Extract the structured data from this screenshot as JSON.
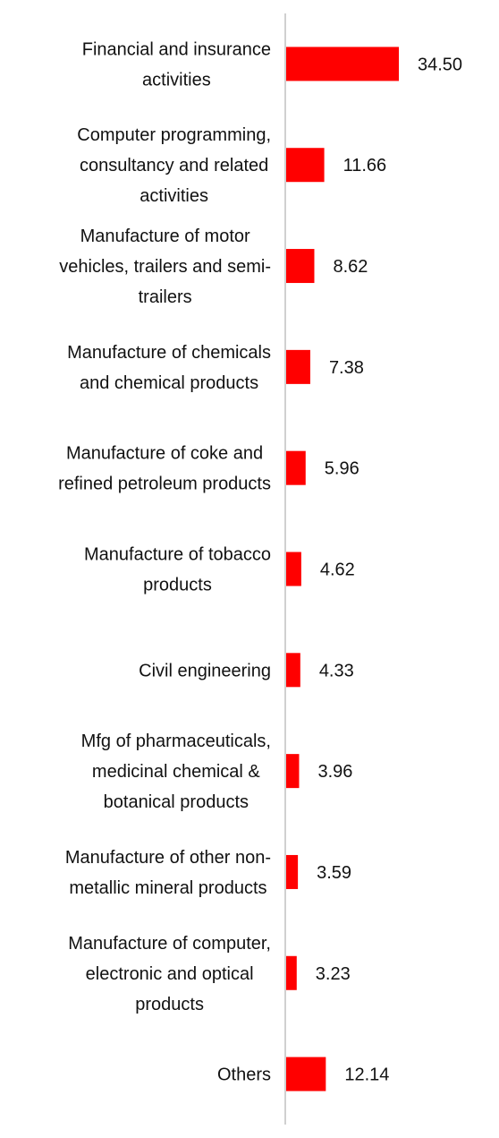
{
  "chart_data": {
    "type": "bar",
    "orientation": "horizontal",
    "title": "",
    "xlabel": "",
    "ylabel": "",
    "grid": false,
    "legend": "none",
    "bar_color": "#ff0000",
    "axis_color": "#d0d0d0",
    "xlim": [
      0,
      34.5
    ],
    "categories": [
      [
        "Financial and insurance",
        "activities"
      ],
      [
        "Computer programming,",
        "consultancy and related",
        "activities"
      ],
      [
        "Manufacture of motor",
        "vehicles, trailers and semi-",
        "trailers"
      ],
      [
        "Manufacture of chemicals",
        "and chemical products"
      ],
      [
        "Manufacture of coke and",
        "refined petroleum products"
      ],
      [
        "Manufacture of tobacco",
        "products"
      ],
      [
        "Civil engineering"
      ],
      [
        "Mfg of pharmaceuticals,",
        "medicinal chemical &",
        "botanical products"
      ],
      [
        "Manufacture of other non-",
        "metallic mineral products"
      ],
      [
        "Manufacture of computer,",
        "electronic and optical",
        "products"
      ],
      [
        "Others"
      ]
    ],
    "values": [
      34.5,
      11.66,
      8.62,
      7.38,
      5.96,
      4.62,
      4.33,
      3.96,
      3.59,
      3.23,
      12.14
    ],
    "value_labels": [
      "34.50",
      "11.66",
      "8.62",
      "7.38",
      "5.96",
      "4.62",
      "4.33",
      "3.96",
      "3.59",
      "3.23",
      "12.14"
    ]
  }
}
